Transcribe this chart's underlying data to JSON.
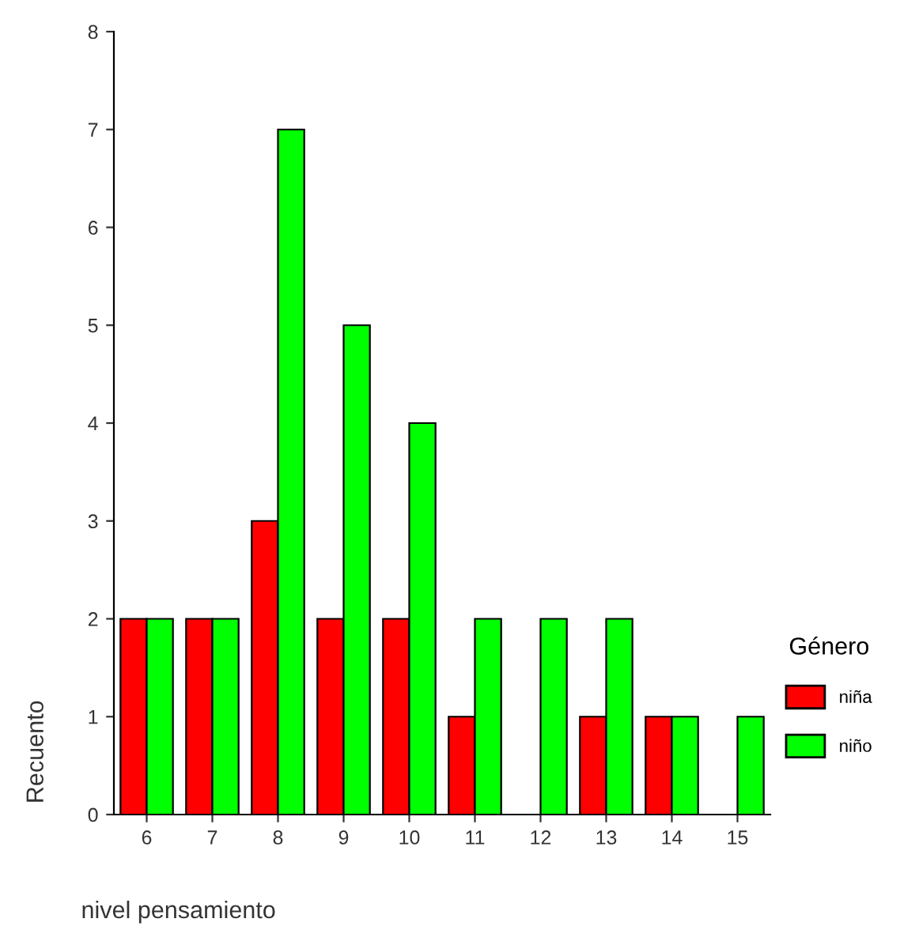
{
  "chart_data": {
    "type": "bar",
    "xlabel": "nivel pensamiento",
    "ylabel": "Recuento",
    "legend_title": "Género",
    "categories": [
      "6",
      "7",
      "8",
      "9",
      "10",
      "11",
      "12",
      "13",
      "14",
      "15"
    ],
    "series": [
      {
        "name": "niña",
        "color": "#ff0000",
        "values": [
          2,
          2,
          3,
          2,
          2,
          1,
          null,
          1,
          1,
          null
        ]
      },
      {
        "name": "niño",
        "color": "#00ff00",
        "values": [
          2,
          2,
          7,
          5,
          4,
          2,
          2,
          2,
          1,
          1
        ]
      }
    ],
    "ylim": [
      0,
      8
    ],
    "yticks": [
      0,
      1,
      2,
      3,
      4,
      5,
      6,
      7,
      8
    ],
    "grid": false,
    "legend": "right"
  }
}
